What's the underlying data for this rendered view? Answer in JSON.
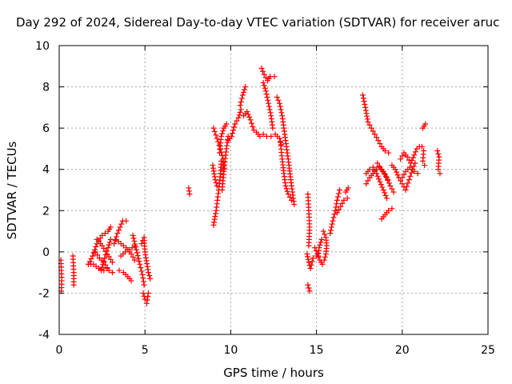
{
  "chart_data": {
    "type": "scatter",
    "title": "Day 292 of 2024, Sidereal Day-to-day VTEC variation (SDTVAR) for receiver aruc",
    "xlabel": "GPS time / hours",
    "ylabel": "SDTVAR / TECUs",
    "xlim": [
      0,
      25
    ],
    "ylim": [
      -4,
      10
    ],
    "xticks": [
      0,
      5,
      10,
      15,
      20,
      25
    ],
    "yticks": [
      -4,
      -2,
      0,
      2,
      4,
      6,
      8,
      10
    ],
    "grid": true,
    "marker": "+",
    "color": "#ff0000",
    "segments": [
      [
        [
          0.1,
          -0.4
        ],
        [
          0.15,
          -1.4
        ],
        [
          0.12,
          -1.9
        ]
      ],
      [
        [
          0.8,
          -0.2
        ],
        [
          0.85,
          -1.0
        ],
        [
          0.85,
          -1.3
        ],
        [
          0.85,
          -1.6
        ]
      ],
      [
        [
          1.7,
          -0.6
        ],
        [
          1.95,
          -0.2
        ],
        [
          2.2,
          0.4
        ],
        [
          2.5,
          0.8
        ],
        [
          2.85,
          1.0
        ],
        [
          3.0,
          1.2
        ]
      ],
      [
        [
          1.7,
          -0.6
        ],
        [
          2.0,
          -0.6
        ],
        [
          2.3,
          -0.8
        ],
        [
          2.6,
          -0.9
        ],
        [
          2.8,
          -0.8
        ]
      ],
      [
        [
          2.1,
          0.0
        ],
        [
          2.35,
          -0.3
        ],
        [
          2.6,
          -0.5
        ],
        [
          2.9,
          -0.9
        ],
        [
          3.1,
          -1.0
        ]
      ],
      [
        [
          2.2,
          0.6
        ],
        [
          2.5,
          0.3
        ],
        [
          2.8,
          -0.1
        ],
        [
          3.1,
          -0.5
        ]
      ],
      [
        [
          2.45,
          -0.9
        ],
        [
          2.65,
          -0.3
        ],
        [
          2.85,
          0.2
        ],
        [
          3.0,
          0.6
        ]
      ],
      [
        [
          3.2,
          0.4
        ],
        [
          3.4,
          0.9
        ],
        [
          3.55,
          1.2
        ],
        [
          3.7,
          1.5
        ],
        [
          3.9,
          1.5
        ]
      ],
      [
        [
          3.3,
          0.6
        ],
        [
          3.6,
          0.4
        ],
        [
          3.9,
          0.2
        ],
        [
          4.2,
          -0.1
        ],
        [
          4.4,
          -0.4
        ]
      ],
      [
        [
          3.5,
          -0.9
        ],
        [
          3.75,
          -1.0
        ],
        [
          4.0,
          -1.2
        ],
        [
          4.2,
          -1.4
        ]
      ],
      [
        [
          3.6,
          -0.2
        ],
        [
          3.85,
          0.0
        ],
        [
          4.1,
          0.1
        ],
        [
          4.4,
          0.3
        ]
      ],
      [
        [
          4.3,
          0.8
        ],
        [
          4.5,
          0.1
        ],
        [
          4.7,
          -0.6
        ],
        [
          4.85,
          -1.1
        ],
        [
          4.95,
          -1.6
        ]
      ],
      [
        [
          4.9,
          -2.0
        ],
        [
          5.0,
          -2.3
        ],
        [
          5.1,
          -2.5
        ],
        [
          5.2,
          -2.0
        ]
      ],
      [
        [
          4.8,
          0.4
        ],
        [
          4.95,
          0.7
        ],
        [
          5.0,
          0.0
        ],
        [
          5.2,
          -1.0
        ],
        [
          5.3,
          -1.3
        ]
      ],
      [
        [
          7.55,
          3.1
        ],
        [
          7.6,
          2.8
        ]
      ],
      [
        [
          9.0,
          1.3
        ],
        [
          9.15,
          2.0
        ],
        [
          9.3,
          3.0
        ],
        [
          9.4,
          3.8
        ],
        [
          9.45,
          4.4
        ]
      ],
      [
        [
          8.95,
          4.2
        ],
        [
          9.1,
          3.5
        ],
        [
          9.2,
          3.2
        ]
      ],
      [
        [
          9.0,
          6.0
        ],
        [
          9.2,
          5.5
        ],
        [
          9.4,
          5.0
        ],
        [
          9.55,
          4.5
        ],
        [
          9.6,
          4.0
        ]
      ],
      [
        [
          9.35,
          4.8
        ],
        [
          9.45,
          5.6
        ],
        [
          9.6,
          6.0
        ],
        [
          9.75,
          6.2
        ]
      ],
      [
        [
          9.5,
          3.0
        ],
        [
          9.6,
          3.9
        ],
        [
          9.75,
          5.0
        ],
        [
          9.85,
          5.6
        ]
      ],
      [
        [
          9.85,
          5.4
        ],
        [
          10.05,
          5.6
        ],
        [
          10.25,
          6.2
        ],
        [
          10.45,
          6.5
        ],
        [
          10.6,
          6.9
        ]
      ],
      [
        [
          10.55,
          7.1
        ],
        [
          10.7,
          7.6
        ],
        [
          10.85,
          8.0
        ]
      ],
      [
        [
          10.75,
          6.6
        ],
        [
          10.95,
          6.8
        ],
        [
          11.15,
          6.4
        ],
        [
          11.35,
          5.9
        ]
      ],
      [
        [
          11.5,
          5.8
        ],
        [
          11.7,
          5.6
        ],
        [
          11.9,
          5.7
        ],
        [
          12.1,
          5.6
        ],
        [
          12.35,
          5.6
        ],
        [
          12.6,
          5.7
        ],
        [
          12.85,
          5.5
        ],
        [
          12.95,
          5.2
        ]
      ],
      [
        [
          11.8,
          8.9
        ],
        [
          11.95,
          8.6
        ],
        [
          12.15,
          8.3
        ],
        [
          12.3,
          8.5
        ],
        [
          12.55,
          8.5
        ]
      ],
      [
        [
          11.9,
          8.2
        ],
        [
          12.05,
          7.8
        ],
        [
          12.2,
          7.2
        ],
        [
          12.35,
          6.6
        ],
        [
          12.45,
          6.0
        ]
      ],
      [
        [
          12.7,
          7.5
        ],
        [
          12.85,
          7.2
        ],
        [
          13.0,
          6.6
        ],
        [
          13.1,
          6.0
        ],
        [
          13.2,
          5.4
        ],
        [
          13.3,
          4.8
        ],
        [
          13.4,
          4.2
        ],
        [
          13.5,
          3.5
        ],
        [
          13.6,
          2.9
        ],
        [
          13.7,
          2.3
        ]
      ],
      [
        [
          12.9,
          5.3
        ],
        [
          13.0,
          4.5
        ],
        [
          13.1,
          3.8
        ],
        [
          13.2,
          3.2
        ],
        [
          13.35,
          2.8
        ],
        [
          13.55,
          2.5
        ]
      ],
      [
        [
          14.5,
          2.8
        ],
        [
          14.55,
          2.0
        ],
        [
          14.6,
          1.2
        ],
        [
          14.55,
          0.3
        ]
      ],
      [
        [
          14.45,
          -0.1
        ],
        [
          14.55,
          -0.5
        ],
        [
          14.65,
          -0.8
        ],
        [
          14.8,
          -0.3
        ],
        [
          15.0,
          -0.2
        ]
      ],
      [
        [
          14.5,
          -1.6
        ],
        [
          14.6,
          -1.9
        ]
      ],
      [
        [
          14.9,
          0.2
        ],
        [
          15.05,
          -0.1
        ],
        [
          15.2,
          -0.4
        ],
        [
          15.35,
          -0.6
        ],
        [
          15.45,
          -0.4
        ],
        [
          15.55,
          -0.1
        ],
        [
          15.6,
          0.3
        ],
        [
          15.55,
          0.7
        ],
        [
          15.4,
          1.0
        ]
      ],
      [
        [
          15.3,
          0.6
        ],
        [
          15.15,
          0.2
        ],
        [
          15.1,
          -0.2
        ]
      ],
      [
        [
          15.8,
          0.9
        ],
        [
          15.95,
          1.5
        ],
        [
          16.1,
          2.0
        ],
        [
          16.2,
          2.5
        ],
        [
          16.35,
          3.0
        ]
      ],
      [
        [
          16.2,
          1.9
        ],
        [
          16.4,
          2.2
        ],
        [
          16.6,
          2.5
        ],
        [
          16.8,
          2.6
        ]
      ],
      [
        [
          16.7,
          2.9
        ],
        [
          16.85,
          3.1
        ]
      ],
      [
        [
          17.7,
          7.6
        ],
        [
          17.85,
          7.0
        ],
        [
          18.0,
          6.3
        ],
        [
          18.2,
          6.0
        ],
        [
          18.4,
          5.7
        ],
        [
          18.6,
          5.4
        ],
        [
          18.8,
          5.1
        ],
        [
          19.0,
          4.9
        ],
        [
          19.2,
          4.8
        ]
      ],
      [
        [
          17.9,
          3.3
        ],
        [
          18.1,
          3.6
        ],
        [
          18.3,
          3.8
        ],
        [
          18.5,
          4.0
        ],
        [
          18.7,
          4.1
        ],
        [
          18.9,
          3.9
        ],
        [
          19.1,
          3.6
        ],
        [
          19.3,
          3.2
        ],
        [
          19.5,
          2.9
        ]
      ],
      [
        [
          17.9,
          3.8
        ],
        [
          18.1,
          4.0
        ],
        [
          18.3,
          4.1
        ],
        [
          18.5,
          3.8
        ],
        [
          18.7,
          3.4
        ],
        [
          18.9,
          3.0
        ],
        [
          19.1,
          2.6
        ]
      ],
      [
        [
          18.55,
          4.3
        ],
        [
          18.75,
          4.0
        ],
        [
          18.95,
          3.8
        ],
        [
          19.15,
          3.5
        ]
      ],
      [
        [
          18.8,
          1.6
        ],
        [
          19.0,
          1.8
        ],
        [
          19.2,
          2.0
        ],
        [
          19.4,
          2.1
        ]
      ],
      [
        [
          19.4,
          4.2
        ],
        [
          19.6,
          4.0
        ],
        [
          19.8,
          3.6
        ],
        [
          20.0,
          3.3
        ],
        [
          20.2,
          3.0
        ],
        [
          20.4,
          3.5
        ],
        [
          20.6,
          4.0
        ],
        [
          20.75,
          4.3
        ]
      ],
      [
        [
          19.9,
          4.5
        ],
        [
          20.1,
          4.8
        ],
        [
          20.3,
          4.6
        ],
        [
          20.5,
          4.3
        ],
        [
          20.7,
          4.7
        ],
        [
          20.85,
          5.0
        ],
        [
          21.0,
          5.1
        ]
      ],
      [
        [
          20.0,
          3.6
        ],
        [
          20.2,
          3.9
        ],
        [
          20.45,
          4.1
        ],
        [
          20.7,
          3.9
        ],
        [
          20.9,
          3.8
        ]
      ],
      [
        [
          21.15,
          5.1
        ],
        [
          21.25,
          4.9
        ],
        [
          21.2,
          4.4
        ],
        [
          21.3,
          4.2
        ]
      ],
      [
        [
          21.2,
          6.0
        ],
        [
          21.35,
          6.2
        ]
      ],
      [
        [
          22.05,
          4.9
        ],
        [
          22.15,
          4.6
        ],
        [
          22.1,
          4.0
        ],
        [
          22.2,
          3.8
        ]
      ]
    ]
  }
}
